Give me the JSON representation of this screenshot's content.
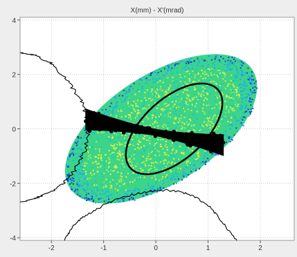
{
  "chart_data": {
    "type": "scatter",
    "title": "X(mm) - X'(mrad)",
    "xlabel": "",
    "ylabel": "",
    "xlim": [
      -2.6,
      2.65
    ],
    "ylim": [
      -4.1,
      4.1
    ],
    "grid": true,
    "x_ticks": [
      -2,
      -1,
      0,
      1,
      2
    ],
    "y_ticks": [
      -4,
      -2,
      0,
      2,
      4
    ],
    "x_tick_labels": [
      "-2",
      "-1",
      "0",
      "1",
      "2"
    ],
    "y_tick_labels": [
      "-4",
      "-2",
      "0",
      "2",
      "4"
    ],
    "beam_distribution": {
      "shape": "tilted ellipse",
      "center": [
        0.1,
        0.0
      ],
      "extent_x": [
        -1.75,
        1.65
      ],
      "extent_y": [
        -2.7,
        2.9
      ],
      "colormap": [
        "#1a3fd0",
        "#1fa3ff",
        "#18c7c0",
        "#3bd97a",
        "#b9f04a",
        "#f4f23a"
      ]
    },
    "matched_ellipse": {
      "center": [
        0.35,
        0.0
      ],
      "extent_x": [
        -0.9,
        1.15
      ],
      "extent_y": [
        -1.35,
        1.4
      ],
      "color": "#000000"
    },
    "dense_band": {
      "x_range": [
        -1.35,
        1.3
      ],
      "y_at_xmin": 0.35,
      "y_at_xmax": -0.6,
      "half_width_at_edges": 0.4,
      "half_width_at_center": 0.13,
      "color": "#000000"
    },
    "profiles": [
      {
        "orientation": "vertical",
        "points": [
          [
            -2.6,
            2.8
          ],
          [
            -2.3,
            2.7
          ],
          [
            -2.0,
            2.4
          ],
          [
            -1.75,
            1.9
          ],
          [
            -1.55,
            1.4
          ],
          [
            -1.4,
            0.9
          ],
          [
            -1.32,
            0.3
          ],
          [
            -1.3,
            -0.2
          ],
          [
            -1.38,
            -0.9
          ],
          [
            -1.55,
            -1.5
          ],
          [
            -1.75,
            -1.95
          ],
          [
            -2.0,
            -2.3
          ],
          [
            -2.3,
            -2.55
          ],
          [
            -2.6,
            -2.7
          ]
        ],
        "color": "#000000"
      },
      {
        "orientation": "horizontal",
        "points": [
          [
            -1.75,
            -4.1
          ],
          [
            -1.6,
            -3.6
          ],
          [
            -1.4,
            -3.25
          ],
          [
            -1.1,
            -2.9
          ],
          [
            -0.7,
            -2.55
          ],
          [
            -0.3,
            -2.35
          ],
          [
            0.1,
            -2.25
          ],
          [
            0.45,
            -2.3
          ],
          [
            0.75,
            -2.5
          ],
          [
            1.0,
            -2.8
          ],
          [
            1.2,
            -3.25
          ],
          [
            1.4,
            -3.75
          ],
          [
            1.55,
            -4.1
          ]
        ],
        "color": "#000000"
      }
    ]
  }
}
